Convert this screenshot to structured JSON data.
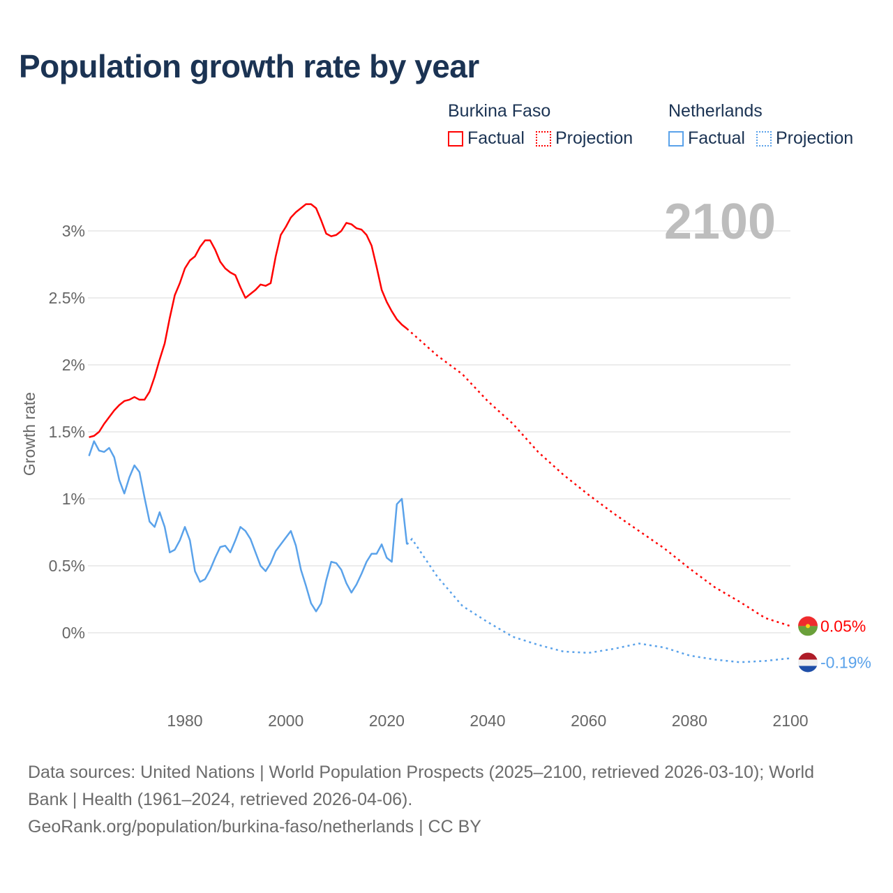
{
  "title": "Population growth rate by year",
  "legend": [
    {
      "country": "Burkina Faso",
      "color": "#ff0000",
      "factual": "Factual",
      "projection": "Projection"
    },
    {
      "country": "Netherlands",
      "color": "#5aa2ea",
      "factual": "Factual",
      "projection": "Projection"
    }
  ],
  "year_label": "2100",
  "source_lines": [
    "Data sources: United Nations | World Population Prospects (2025–2100, retrieved 2026-03-10); World",
    "Bank | Health (1961–2024, retrieved 2026-04-06).",
    "GeoRank.org/population/burkina-faso/netherlands | CC BY"
  ],
  "chart_data": {
    "type": "line",
    "title": "Population growth rate by year",
    "xlabel": "",
    "ylabel": "Growth rate",
    "xlim": [
      1961,
      2100
    ],
    "ylim": [
      -0.5,
      3.3
    ],
    "xticks": [
      1980,
      2000,
      2020,
      2040,
      2060,
      2080,
      2100
    ],
    "xtick_labels": [
      "1980",
      "2000",
      "2020",
      "2040",
      "2060",
      "2080",
      "2100"
    ],
    "yticks": [
      0,
      0.5,
      1,
      1.5,
      2,
      2.5,
      3
    ],
    "ytick_labels": [
      "0%",
      "0.5%",
      "1%",
      "1.5%",
      "2%",
      "2.5%",
      "3%"
    ],
    "grid": true,
    "legend_position": "top-right",
    "series": [
      {
        "name": "Burkina Faso",
        "color": "#ff0000",
        "end_label": "0.05%",
        "factual": {
          "x_start": 1961,
          "values": [
            1.46,
            1.47,
            1.5,
            1.56,
            1.61,
            1.66,
            1.7,
            1.73,
            1.74,
            1.76,
            1.74,
            1.74,
            1.8,
            1.91,
            2.04,
            2.16,
            2.35,
            2.52,
            2.61,
            2.72,
            2.78,
            2.81,
            2.88,
            2.93,
            2.93,
            2.86,
            2.77,
            2.72,
            2.69,
            2.67,
            2.58,
            2.5,
            2.53,
            2.56,
            2.6,
            2.59,
            2.61,
            2.81,
            2.97,
            3.03,
            3.1,
            3.14,
            3.17,
            3.2,
            3.2,
            3.17,
            3.08,
            2.98,
            2.96,
            2.97,
            3.0,
            3.06,
            3.05,
            3.02,
            3.01,
            2.97,
            2.89,
            2.73,
            2.56,
            2.47,
            2.4,
            2.34,
            2.3,
            2.27
          ]
        },
        "projection": {
          "x": [
            2024,
            2030,
            2035,
            2040,
            2045,
            2050,
            2055,
            2060,
            2065,
            2070,
            2075,
            2080,
            2085,
            2090,
            2095,
            2100
          ],
          "values": [
            2.27,
            2.07,
            1.93,
            1.73,
            1.56,
            1.35,
            1.18,
            1.03,
            0.89,
            0.76,
            0.63,
            0.48,
            0.34,
            0.23,
            0.11,
            0.05
          ]
        }
      },
      {
        "name": "Netherlands",
        "color": "#5aa2ea",
        "end_label": "-0.19%",
        "factual": {
          "x_start": 1961,
          "values": [
            1.32,
            1.43,
            1.36,
            1.35,
            1.38,
            1.31,
            1.14,
            1.04,
            1.16,
            1.25,
            1.2,
            1.01,
            0.83,
            0.79,
            0.9,
            0.79,
            0.6,
            0.62,
            0.69,
            0.79,
            0.69,
            0.46,
            0.38,
            0.4,
            0.47,
            0.56,
            0.64,
            0.65,
            0.6,
            0.69,
            0.79,
            0.76,
            0.7,
            0.6,
            0.5,
            0.46,
            0.52,
            0.61,
            0.66,
            0.71,
            0.76,
            0.65,
            0.47,
            0.35,
            0.22,
            0.16,
            0.22,
            0.39,
            0.53,
            0.52,
            0.47,
            0.37,
            0.3,
            0.36,
            0.44,
            0.53,
            0.59,
            0.59,
            0.66,
            0.56,
            0.53,
            0.96,
            1.0,
            0.66
          ]
        },
        "projection": {
          "x": [
            2024,
            2025,
            2030,
            2035,
            2040,
            2045,
            2050,
            2055,
            2060,
            2065,
            2070,
            2075,
            2080,
            2085,
            2090,
            2095,
            2100
          ],
          "values": [
            0.66,
            0.7,
            0.42,
            0.2,
            0.08,
            -0.03,
            -0.09,
            -0.14,
            -0.15,
            -0.12,
            -0.08,
            -0.11,
            -0.17,
            -0.2,
            -0.22,
            -0.21,
            -0.19
          ]
        }
      }
    ]
  }
}
